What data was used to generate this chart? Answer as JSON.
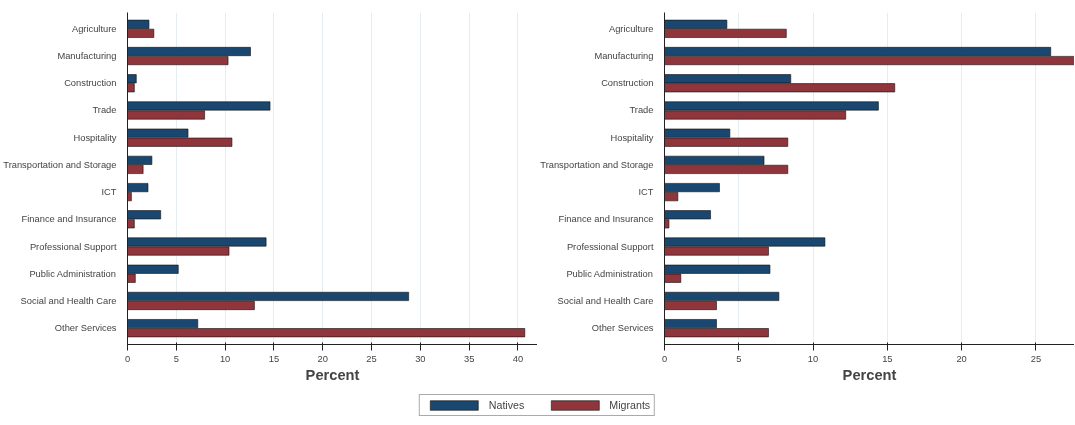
{
  "chart_data": [
    {
      "type": "bar",
      "orientation": "horizontal",
      "categories": [
        "Agriculture",
        "Manufacturing",
        "Construction",
        "Trade",
        "Hospitality",
        "Transportation and Storage",
        "ICT",
        "Finance and Insurance",
        "Professional Support",
        "Public Administration",
        "Social and Health Care",
        "Other Services"
      ],
      "series": [
        {
          "name": "Natives",
          "color": "#1a476f",
          "values": [
            2.2,
            12.6,
            0.9,
            14.6,
            6.2,
            2.5,
            2.1,
            3.4,
            14.2,
            5.2,
            28.8,
            7.2
          ]
        },
        {
          "name": "Migrants",
          "color": "#90353b",
          "values": [
            2.7,
            10.3,
            0.7,
            7.9,
            10.7,
            1.6,
            0.4,
            0.7,
            10.4,
            0.8,
            13.0,
            40.7
          ]
        }
      ],
      "xlabel": "Percent",
      "xlim": [
        0,
        42
      ],
      "xticks": [
        0,
        5,
        10,
        15,
        20,
        25,
        30,
        35,
        40
      ],
      "grid": "x",
      "legend": "bottom"
    },
    {
      "type": "bar",
      "orientation": "horizontal",
      "categories": [
        "Agriculture",
        "Manufacturing",
        "Construction",
        "Trade",
        "Hospitality",
        "Transportation and Storage",
        "ICT",
        "Finance and Insurance",
        "Professional Support",
        "Public Administration",
        "Social and Health Care",
        "Other Services"
      ],
      "series": [
        {
          "color": "#1a476f",
          "values": [
            4.2,
            26.0,
            8.5,
            14.4,
            4.4,
            6.7,
            3.7,
            3.1,
            10.8,
            7.1,
            7.7,
            3.5
          ]
        },
        {
          "color": "#90353b",
          "values": [
            8.2,
            27.6,
            15.5,
            12.2,
            8.3,
            8.3,
            0.9,
            0.3,
            7.0,
            1.1,
            3.5,
            7.0
          ]
        }
      ],
      "xlabel": "Percent",
      "xlim": [
        0,
        27.6
      ],
      "xticks": [
        0,
        5,
        10,
        15,
        20,
        25
      ],
      "grid": "x"
    }
  ]
}
